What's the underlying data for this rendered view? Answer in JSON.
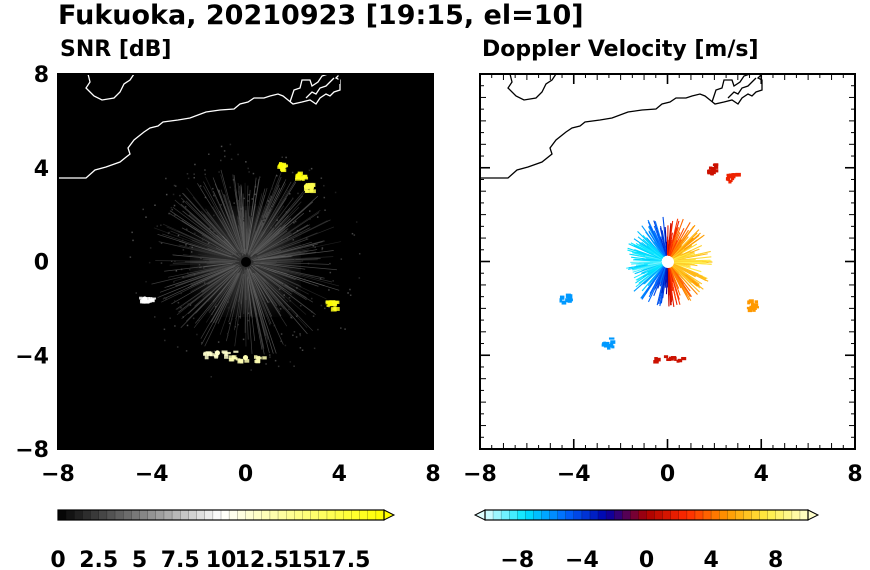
{
  "title": "Fukuoka, 20210923 [19:15, el=10]",
  "chart_data": [
    {
      "type": "heatmap",
      "title": "SNR [dB]",
      "xlim": [
        -8,
        8
      ],
      "ylim": [
        -8,
        8
      ],
      "xticks": [
        "−8",
        "−4",
        "0",
        "4",
        "8"
      ],
      "yticks": [
        "8",
        "4",
        "0",
        "−4",
        "−8"
      ],
      "background": "#000000",
      "colorbar": {
        "ticks": [
          "0",
          "2.5",
          "5",
          "7.5",
          "10",
          "12.5",
          "15",
          "17.5"
        ],
        "min": 0,
        "max": 20,
        "levels": 40,
        "extend": "max",
        "colors": [
          "#000000",
          "#ffffff",
          "#ffff00"
        ]
      },
      "echoes": [
        {
          "x": 0.0,
          "y": 0.0,
          "value": 3,
          "note": "ground clutter ring"
        },
        {
          "x": 1.5,
          "y": 4.1,
          "value": 19
        },
        {
          "x": 2.3,
          "y": 3.7,
          "value": 19
        },
        {
          "x": 2.6,
          "y": 3.2,
          "value": 17
        },
        {
          "x": 3.6,
          "y": -1.8,
          "value": 19
        },
        {
          "x": -4.3,
          "y": -1.6,
          "value": 10
        },
        {
          "x": -1.2,
          "y": -3.9,
          "value": 12
        },
        {
          "x": 0.0,
          "y": -4.1,
          "value": 13
        }
      ]
    },
    {
      "type": "heatmap",
      "title": "Doppler Velocity [m/s]",
      "xlim": [
        -8,
        8
      ],
      "ylim": [
        -8,
        8
      ],
      "xticks": [
        "−8",
        "−4",
        "0",
        "4",
        "8"
      ],
      "yticks": [],
      "background": "#ffffff",
      "colorbar": {
        "ticks": [
          "−8",
          "−4",
          "0",
          "4",
          "8"
        ],
        "min": -10,
        "max": 10,
        "levels": 40,
        "extend": "both",
        "colors": [
          "#e0ffff",
          "#00e5ff",
          "#0066ff",
          "#0000aa",
          "#aa0000",
          "#ff2a00",
          "#ff9900",
          "#ffee44",
          "#ffffcc"
        ]
      },
      "echoes": [
        {
          "x": -0.7,
          "y": 0.2,
          "value": -6,
          "note": "near-radar approaching"
        },
        {
          "x": 0.7,
          "y": 0.2,
          "value": 4,
          "note": "near-radar receding"
        },
        {
          "x": 1.9,
          "y": 4.0,
          "value": 1
        },
        {
          "x": 2.7,
          "y": 3.6,
          "value": 2
        },
        {
          "x": 3.6,
          "y": -1.8,
          "value": 5
        },
        {
          "x": -4.4,
          "y": -1.5,
          "value": -6
        },
        {
          "x": -2.6,
          "y": -3.4,
          "value": -6
        },
        {
          "x": 0.0,
          "y": -4.1,
          "value": 1
        }
      ]
    }
  ]
}
